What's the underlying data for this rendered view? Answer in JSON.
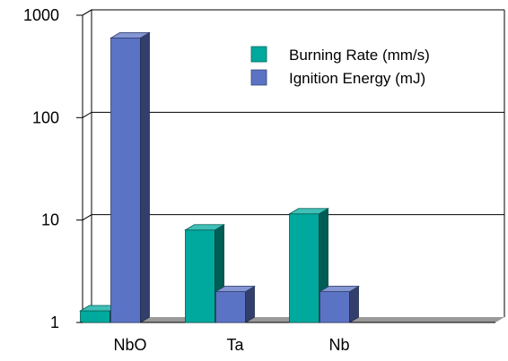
{
  "chart_data": {
    "type": "bar",
    "view": "3d",
    "categories": [
      "NbO",
      "Ta",
      "Nb"
    ],
    "series": [
      {
        "name": "Burning Rate (mm/s)",
        "values": [
          1.3,
          8,
          11.5
        ],
        "color": "#00a99d"
      },
      {
        "name": "Ignition Energy (mJ)",
        "values": [
          600,
          2,
          2
        ],
        "color": "#5b73c4"
      }
    ],
    "y_scale": "log",
    "ylim": [
      1,
      1000
    ],
    "y_ticks": [
      "1",
      "10",
      "100",
      "1000"
    ],
    "y_tick_values": [
      1,
      10,
      100,
      1000
    ],
    "grid": true,
    "legend_position": "top-right",
    "floor_color": "#999999"
  }
}
